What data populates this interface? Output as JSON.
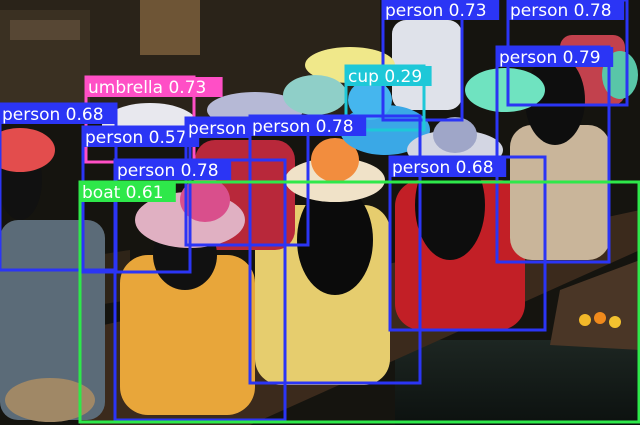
{
  "colors": {
    "person": "#2b35f5",
    "umbrella": "#ff4fc6",
    "cup": "#1ec8d8",
    "boat": "#2ee84a"
  },
  "detections": [
    {
      "label": "person 0.73",
      "class": "person"
    },
    {
      "label": "person 0.78",
      "class": "person"
    },
    {
      "label": "person 0.79",
      "class": "person"
    },
    {
      "label": "umbrella 0.73",
      "class": "umbrella"
    },
    {
      "label": "cup 0.29",
      "class": "cup"
    },
    {
      "label": "person 0.68",
      "class": "person"
    },
    {
      "label": "person 0.57",
      "class": "person"
    },
    {
      "label": "person",
      "class": "person"
    },
    {
      "label": "person 0.78",
      "class": "person"
    },
    {
      "label": "person 0.68",
      "class": "person"
    },
    {
      "label": "person 0.78",
      "class": "person"
    },
    {
      "label": "boat 0.61",
      "class": "boat"
    }
  ]
}
